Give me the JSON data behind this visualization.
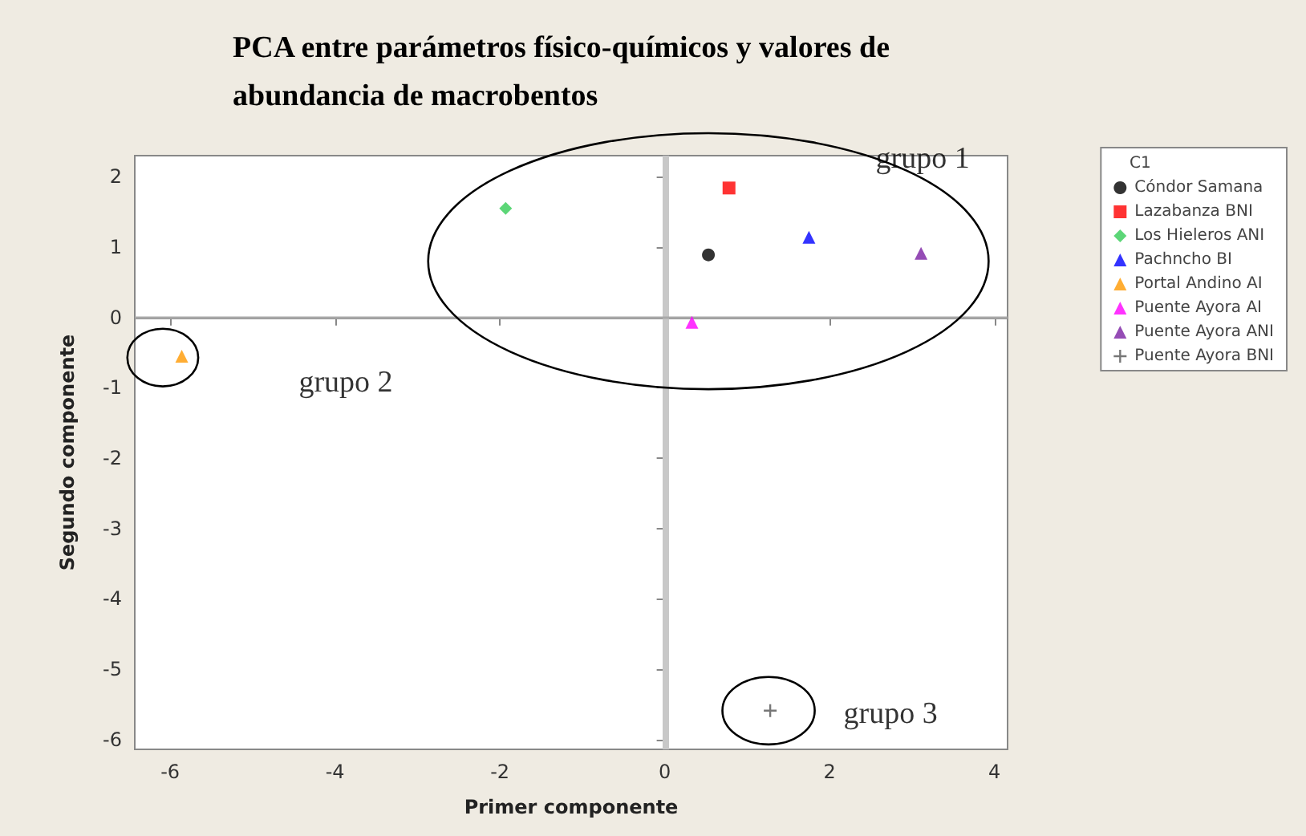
{
  "chart_data": {
    "type": "scatter",
    "title": "PCA entre parámetros físico-químicos y valores de\nabundancia de macrobentos",
    "xlabel": "Primer componente",
    "ylabel": "Segundo componente",
    "legend_title": "C1",
    "legend": "top right",
    "grid": false,
    "xlim": [
      -6.43,
      4.16
    ],
    "xticks": [
      -6,
      -4,
      -2,
      0,
      2,
      4
    ],
    "ylim": [
      -6.14,
      2.3
    ],
    "yticks": [
      -6,
      -5,
      -4,
      -3,
      -2,
      -1,
      0,
      1,
      2
    ],
    "ref_lines": [
      {
        "axis": "x",
        "value": 0,
        "color": "#c8c8c8"
      },
      {
        "axis": "y",
        "value": 0,
        "color": "#a8a8a8"
      }
    ],
    "series": [
      {
        "name": "Cóndor Samana",
        "color": "#000000",
        "marker": "circle",
        "x": [
          0.53
        ],
        "values": [
          0.89
        ]
      },
      {
        "name": "Lazabanza BNI",
        "color": "#ff0000",
        "marker": "square",
        "x": [
          0.78
        ],
        "values": [
          1.84
        ]
      },
      {
        "name": "Los Hieleros ANI",
        "color": "#33cc55",
        "marker": "diamond",
        "x": [
          -1.93
        ],
        "values": [
          1.55
        ]
      },
      {
        "name": "Pachncho BI",
        "color": "#0000ff",
        "marker": "triangle",
        "x": [
          1.75
        ],
        "values": [
          1.14
        ]
      },
      {
        "name": "Portal Andino AI",
        "color": "#ff9900",
        "marker": "triangle",
        "x": [
          -5.86
        ],
        "values": [
          -0.55
        ]
      },
      {
        "name": "Puente Ayora AI",
        "color": "#ff00ff",
        "marker": "triangle",
        "x": [
          0.33
        ],
        "values": [
          -0.07
        ]
      },
      {
        "name": "Puente Ayora ANI",
        "color": "#7a1fa2",
        "marker": "triangle",
        "x": [
          3.11
        ],
        "values": [
          0.91
        ]
      },
      {
        "name": "Puente Ayora BNI",
        "color": "#555555",
        "marker": "cross",
        "x": [
          1.28
        ],
        "values": [
          -5.59
        ]
      }
    ],
    "annotations": [
      "grupo 1",
      "grupo 2",
      "grupo 3"
    ]
  }
}
